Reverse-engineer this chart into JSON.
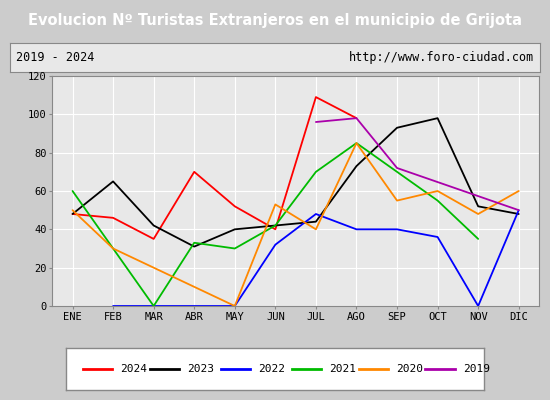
{
  "title": "Evolucion Nº Turistas Extranjeros en el municipio de Grijota",
  "subtitle_left": "2019 - 2024",
  "subtitle_right": "http://www.foro-ciudad.com",
  "months": [
    "ENE",
    "FEB",
    "MAR",
    "ABR",
    "MAY",
    "JUN",
    "JUL",
    "AGO",
    "SEP",
    "OCT",
    "NOV",
    "DIC"
  ],
  "series": {
    "2024": [
      48,
      46,
      35,
      70,
      52,
      40,
      109,
      98,
      null,
      null,
      null,
      null
    ],
    "2023": [
      48,
      65,
      42,
      31,
      40,
      42,
      44,
      73,
      93,
      98,
      52,
      48
    ],
    "2022": [
      null,
      0,
      0,
      0,
      0,
      32,
      48,
      40,
      40,
      36,
      0,
      50
    ],
    "2021": [
      60,
      null,
      0,
      33,
      30,
      42,
      70,
      85,
      null,
      55,
      35,
      null
    ],
    "2020": [
      50,
      30,
      null,
      null,
      0,
      53,
      40,
      85,
      55,
      60,
      48,
      60
    ],
    "2019": [
      null,
      null,
      null,
      null,
      null,
      null,
      96,
      98,
      72,
      null,
      null,
      50
    ]
  },
  "colors": {
    "2024": "#ff0000",
    "2023": "#000000",
    "2022": "#0000ff",
    "2021": "#00bb00",
    "2020": "#ff8800",
    "2019": "#aa00aa"
  },
  "ylim": [
    0,
    120
  ],
  "yticks": [
    0,
    20,
    40,
    60,
    80,
    100,
    120
  ],
  "title_bg": "#4477cc",
  "title_color": "#ffffff",
  "subtitle_bg": "#e8e8e8",
  "plot_bg": "#e8e8e8",
  "outer_bg": "#cccccc",
  "grid_color": "#ffffff"
}
